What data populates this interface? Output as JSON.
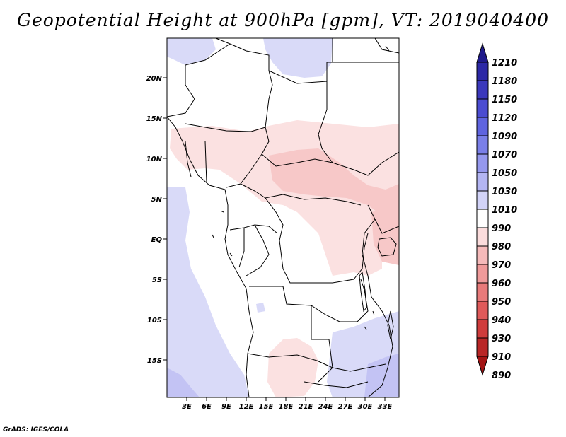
{
  "title": "Geopotential Height at 900hPa [gpm], VT: 2019040400",
  "credit": "GrADS: IGES/COLA",
  "lat_ticks": [
    "20N",
    "15N",
    "10N",
    "5N",
    "EQ",
    "5S",
    "10S",
    "15S"
  ],
  "lon_ticks": [
    "3E",
    "6E",
    "9E",
    "12E",
    "15E",
    "18E",
    "21E",
    "24E",
    "27E",
    "30E",
    "33E"
  ],
  "colorbar": {
    "levels": [
      "1210",
      "1180",
      "1150",
      "1120",
      "1090",
      "1070",
      "1050",
      "1030",
      "1010",
      "990",
      "980",
      "970",
      "960",
      "950",
      "940",
      "930",
      "910",
      "890"
    ],
    "colors": [
      "#1f1a8c",
      "#2c28a6",
      "#3b38bc",
      "#4b4cd2",
      "#5f64e0",
      "#7a7fe8",
      "#9598ee",
      "#b3b5f3",
      "#d2d3f8",
      "#ffffff",
      "#fbdcdc",
      "#f5baba",
      "#ef9a9a",
      "#e87a7a",
      "#df5a5a",
      "#cf3c3c",
      "#b92626",
      "#a31414"
    ]
  }
}
